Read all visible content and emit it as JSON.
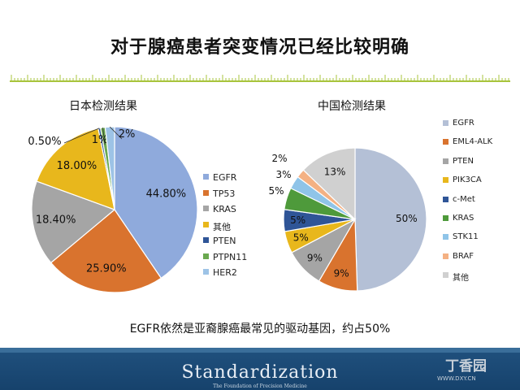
{
  "slide": {
    "title": "对于腺癌患者突变情况已经比较明确",
    "summary": "EGFR依然是亚裔腺癌最常见的驱动基因，约占50%",
    "footer_logo": "Standardization",
    "footer_subtitle": "The Foundation of Precision Medicine",
    "watermark": "丁香园",
    "watermark_url": "WWW.DXY.CN"
  },
  "colors": {
    "ruler": "#a8c43c",
    "footer": "#1f4f7c"
  },
  "chart_data": [
    {
      "type": "pie",
      "title": "日本检测结果",
      "legend_position": "right",
      "slices": [
        {
          "label": "EGFR",
          "value": 44.8,
          "display": "44.80%",
          "color": "#8faadc"
        },
        {
          "label": "TP53",
          "value": 25.9,
          "display": "25.90%",
          "color": "#d9732e"
        },
        {
          "label": "KRAS",
          "value": 18.4,
          "display": "18.40%",
          "color": "#a5a5a5"
        },
        {
          "label": "其他",
          "value": 18.0,
          "display": "18.00%",
          "color": "#e8b71c"
        },
        {
          "label": "PTEN",
          "value": 0.5,
          "display": "0.50%",
          "color": "#2f5597"
        },
        {
          "label": "PTPN11",
          "value": 1,
          "display": "1%",
          "color": "#6aa84f"
        },
        {
          "label": "HER2",
          "value": 2,
          "display": "2%",
          "color": "#9dc3e6"
        }
      ]
    },
    {
      "type": "pie",
      "title": "中国检测结果",
      "legend_position": "right",
      "slices": [
        {
          "label": "EGFR",
          "value": 50,
          "display": "50%",
          "color": "#b4c0d6"
        },
        {
          "label": "EML4-ALK",
          "value": 9,
          "display": "9%",
          "color": "#d9732e"
        },
        {
          "label": "PTEN",
          "value": 9,
          "display": "9%",
          "color": "#a5a5a5"
        },
        {
          "label": "PIK3CA",
          "value": 5,
          "display": "5%",
          "color": "#e8b71c"
        },
        {
          "label": "c-Met",
          "value": 5,
          "display": "5%",
          "color": "#2f5597"
        },
        {
          "label": "KRAS",
          "value": 5,
          "display": "5%",
          "color": "#4e9a3b"
        },
        {
          "label": "STK11",
          "value": 3,
          "display": "3%",
          "color": "#8fc4e8"
        },
        {
          "label": "BRAF",
          "value": 2,
          "display": "2%",
          "color": "#f4b183"
        },
        {
          "label": "其他",
          "value": 13,
          "display": "13%",
          "color": "#d0d0d0"
        }
      ]
    }
  ]
}
